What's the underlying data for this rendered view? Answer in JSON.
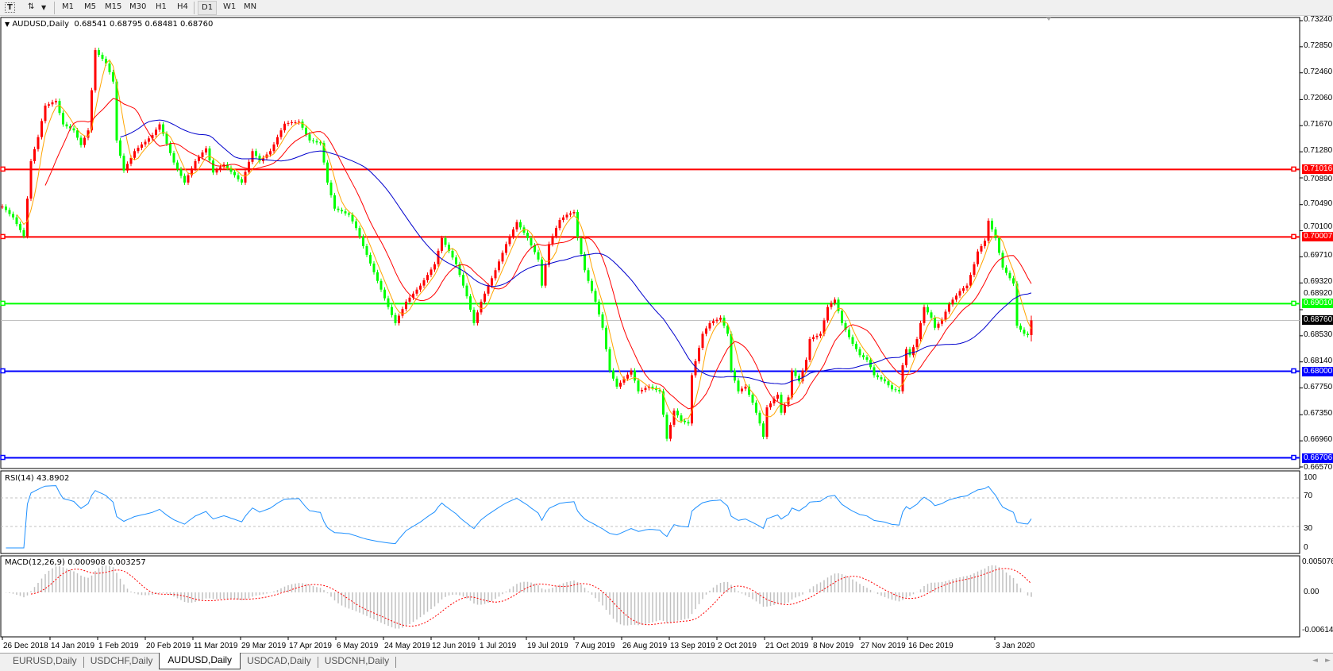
{
  "toolbar": {
    "timeframes": [
      "M1",
      "M5",
      "M15",
      "M30",
      "H1",
      "H4",
      "D1",
      "W1",
      "MN"
    ],
    "active_timeframe": "D1",
    "icons": [
      "text-tool-icon",
      "line-tools-icon",
      "dropdown-icon"
    ]
  },
  "header": {
    "symbol": "AUDUSD,Daily",
    "ohlc_readout": "0.68541 0.68795 0.68481 0.68760"
  },
  "colors": {
    "bull_candle": "#ff0000",
    "bear_candle": "#00ff00",
    "ma_fast": "#ffa500",
    "ma_mid": "#ff0000",
    "ma_slow": "#0000cd",
    "rsi_line": "#1e90ff",
    "macd_hist": "#c0c0c0",
    "macd_signal": "#ff0000"
  },
  "price_axis": [
    "0.73240",
    "0.72850",
    "0.72460",
    "0.72060",
    "0.71670",
    "0.71280",
    "0.70890",
    "0.70490",
    "0.70100",
    "0.69710",
    "0.69320",
    "0.68920",
    "0.68530",
    "0.68140",
    "0.67750",
    "0.67350",
    "0.66960",
    "0.66570"
  ],
  "horizontal_lines": [
    {
      "price": "0.71016",
      "color": "#ff0000"
    },
    {
      "price": "0.70007",
      "color": "#ff0000"
    },
    {
      "price": "0.69010",
      "color": "#00ff00"
    },
    {
      "price": "0.68760",
      "color": "#000000",
      "current": true
    },
    {
      "price": "0.68000",
      "color": "#0000ff"
    },
    {
      "price": "0.66706",
      "color": "#0000ff"
    }
  ],
  "rsi": {
    "label": "RSI(14) 43.8902",
    "axis": [
      "100",
      "70",
      "30",
      "0"
    ],
    "levels": [
      70,
      30
    ]
  },
  "macd": {
    "label": "MACD(12,26,9) 0.000908 0.003257",
    "axis": [
      "0.005076",
      "0.00",
      "-0.00614"
    ]
  },
  "date_axis": [
    "26 Dec 2018",
    "14 Jan 2019",
    "1 Feb 2019",
    "20 Feb 2019",
    "11 Mar 2019",
    "29 Mar 2019",
    "17 Apr 2019",
    "6 May 2019",
    "24 May 2019",
    "12 Jun 2019",
    "1 Jul 2019",
    "19 Jul 2019",
    "7 Aug 2019",
    "26 Aug 2019",
    "13 Sep 2019",
    "2 Oct 2019",
    "21 Oct 2019",
    "8 Nov 2019",
    "27 Nov 2019",
    "16 Dec 2019",
    "3 Jan 2020"
  ],
  "tabs": [
    {
      "label": "EURUSD,Daily",
      "active": false
    },
    {
      "label": "USDCHF,Daily",
      "active": false
    },
    {
      "label": "AUDUSD,Daily",
      "active": true
    },
    {
      "label": "USDCAD,Daily",
      "active": false
    },
    {
      "label": "USDCNH,Daily",
      "active": false
    }
  ],
  "chart_data": {
    "type": "candlestick",
    "symbol": "AUDUSD",
    "timeframe": "Daily",
    "ylim": [
      0.6657,
      0.7324
    ],
    "last_bar": {
      "open": 0.68541,
      "high": 0.68795,
      "low": 0.68481,
      "close": 0.6876
    },
    "closes": [
      0.7046,
      0.7041,
      0.7035,
      0.703,
      0.702,
      0.7011,
      0.7002,
      0.7058,
      0.7114,
      0.7132,
      0.715,
      0.7174,
      0.7197,
      0.7199,
      0.7202,
      0.7204,
      0.7186,
      0.7169,
      0.7166,
      0.7163,
      0.716,
      0.7149,
      0.7138,
      0.7149,
      0.716,
      0.722,
      0.728,
      0.7273,
      0.7267,
      0.726,
      0.7247,
      0.7233,
      0.7145,
      0.7122,
      0.71,
      0.711,
      0.7119,
      0.7129,
      0.7134,
      0.7139,
      0.7143,
      0.7148,
      0.7153,
      0.7161,
      0.7169,
      0.7155,
      0.714,
      0.7126,
      0.7112,
      0.7102,
      0.7092,
      0.7082,
      0.7093,
      0.7103,
      0.7114,
      0.712,
      0.7127,
      0.7133,
      0.7115,
      0.7097,
      0.7101,
      0.7105,
      0.7109,
      0.7104,
      0.7098,
      0.7093,
      0.7087,
      0.7082,
      0.7098,
      0.7113,
      0.7129,
      0.7122,
      0.7114,
      0.7119,
      0.7124,
      0.7129,
      0.7139,
      0.715,
      0.716,
      0.717,
      0.7171,
      0.7172,
      0.7172,
      0.7173,
      0.7164,
      0.7154,
      0.7145,
      0.7144,
      0.7142,
      0.7141,
      0.7112,
      0.7082,
      0.7063,
      0.7043,
      0.7041,
      0.7039,
      0.7036,
      0.7034,
      0.7024,
      0.7014,
      0.7001,
      0.6987,
      0.6974,
      0.6961,
      0.6948,
      0.6935,
      0.6922,
      0.6909,
      0.6896,
      0.6884,
      0.6872,
      0.6883,
      0.6893,
      0.6904,
      0.691,
      0.6916,
      0.6922,
      0.6928,
      0.6936,
      0.6944,
      0.6952,
      0.696,
      0.698,
      0.6999,
      0.6989,
      0.698,
      0.697,
      0.696,
      0.6944,
      0.6928,
      0.6912,
      0.6892,
      0.6872,
      0.6888,
      0.6904,
      0.6916,
      0.6928,
      0.6939,
      0.6951,
      0.6964,
      0.6977,
      0.699,
      0.7001,
      0.7012,
      0.7023,
      0.7015,
      0.7007,
      0.6999,
      0.6988,
      0.6978,
      0.6967,
      0.6928,
      0.6959,
      0.699,
      0.7002,
      0.7014,
      0.7026,
      0.703,
      0.7034,
      0.7036,
      0.7038,
      0.6999,
      0.6975,
      0.6951,
      0.6935,
      0.692,
      0.6904,
      0.6885,
      0.6865,
      0.6833,
      0.6801,
      0.6789,
      0.6777,
      0.6783,
      0.6789,
      0.6795,
      0.6801,
      0.6786,
      0.677,
      0.6772,
      0.6775,
      0.6777,
      0.6775,
      0.6772,
      0.677,
      0.6735,
      0.6699,
      0.672,
      0.6741,
      0.6734,
      0.6726,
      0.6724,
      0.6722,
      0.6794,
      0.6815,
      0.6835,
      0.6856,
      0.6864,
      0.6872,
      0.6875,
      0.6877,
      0.688,
      0.6868,
      0.6856,
      0.6801,
      0.6786,
      0.677,
      0.6774,
      0.6777,
      0.6765,
      0.6753,
      0.6738,
      0.6722,
      0.6702,
      0.6746,
      0.6752,
      0.6759,
      0.6765,
      0.6738,
      0.675,
      0.6761,
      0.6801,
      0.6793,
      0.6785,
      0.6801,
      0.6817,
      0.6848,
      0.6851,
      0.6853,
      0.6856,
      0.6876,
      0.6896,
      0.6902,
      0.6907,
      0.689,
      0.6872,
      0.6862,
      0.6851,
      0.6841,
      0.6833,
      0.6824,
      0.6821,
      0.6817,
      0.6806,
      0.6794,
      0.6791,
      0.6788,
      0.6785,
      0.6779,
      0.6773,
      0.6772,
      0.677,
      0.6809,
      0.6833,
      0.6824,
      0.6836,
      0.6848,
      0.6872,
      0.6896,
      0.6888,
      0.688,
      0.6865,
      0.6871,
      0.6877,
      0.6889,
      0.69,
      0.6907,
      0.6913,
      0.692,
      0.6924,
      0.6928,
      0.6944,
      0.696,
      0.6979,
      0.6987,
      0.6995,
      0.7025,
      0.7012,
      0.6999,
      0.6977,
      0.6955,
      0.6947,
      0.6939,
      0.6931,
      0.6868,
      0.6862,
      0.6856,
      0.6854,
      0.6876
    ]
  }
}
